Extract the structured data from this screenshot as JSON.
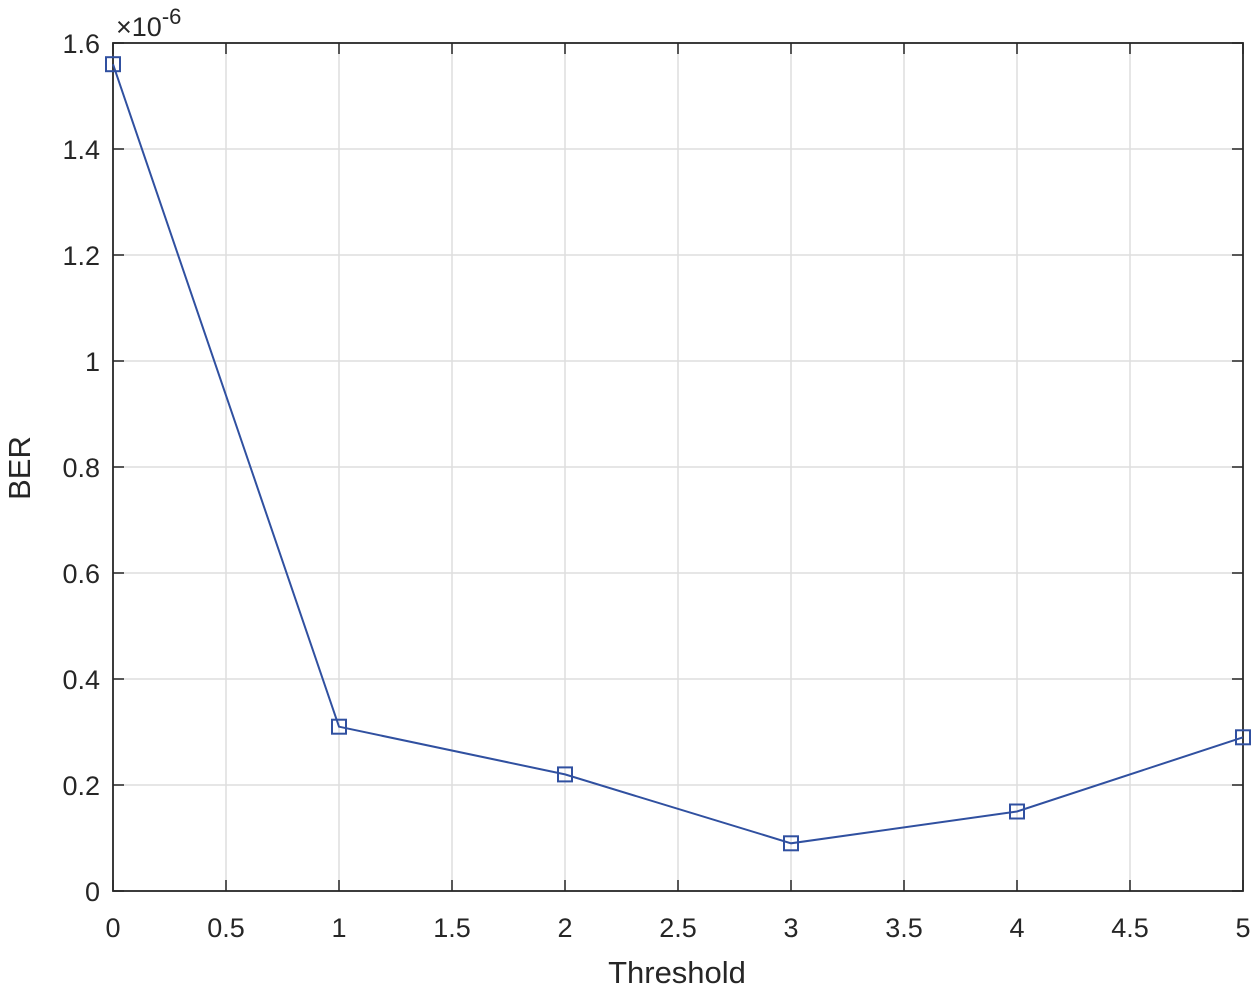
{
  "chart_data": {
    "type": "line",
    "title": "",
    "xlabel": "Threshold",
    "ylabel": "BER",
    "y_exponent_label": "×10^-6",
    "x": [
      0,
      1,
      2,
      3,
      4,
      5
    ],
    "series": [
      {
        "values": [
          1.56,
          0.31,
          0.22,
          0.09,
          0.15,
          0.29
        ],
        "color": "#3050a0",
        "marker": "square"
      }
    ],
    "xlim": [
      0,
      5
    ],
    "ylim": [
      0,
      1.6
    ],
    "xticks": [
      "0",
      "0.5",
      "1",
      "1.5",
      "2",
      "2.5",
      "3",
      "3.5",
      "4",
      "4.5",
      "5"
    ],
    "yticks": [
      "0",
      "0.2",
      "0.4",
      "0.6",
      "0.8",
      "1",
      "1.2",
      "1.4",
      "1.6"
    ],
    "grid": true,
    "legend": "none"
  },
  "colors": {
    "line": "#3050a0",
    "grid": "#dedede",
    "axis": "#262626",
    "background": "#ffffff"
  }
}
